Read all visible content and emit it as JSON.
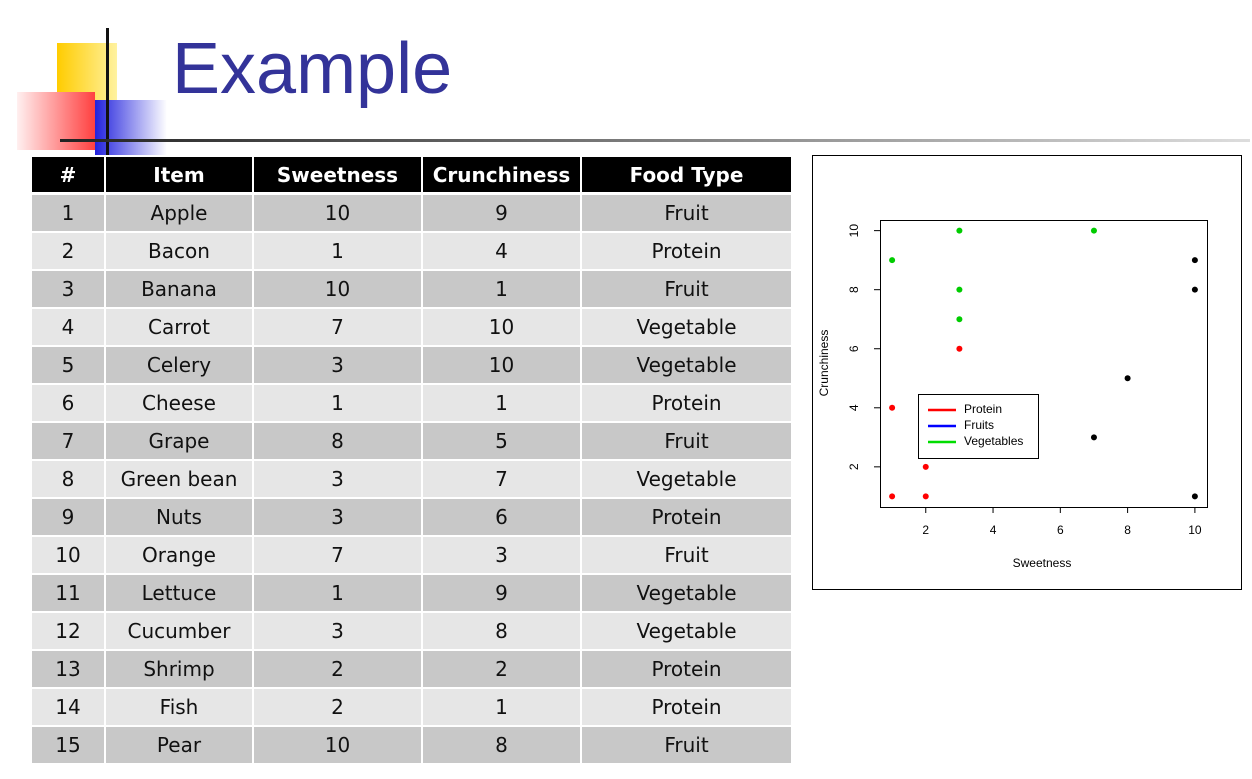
{
  "title": "Example",
  "table": {
    "headers": [
      "#",
      "Item",
      "Sweetness",
      "Crunchiness",
      "Food Type"
    ],
    "rows": [
      [
        1,
        "Apple",
        10,
        9,
        "Fruit"
      ],
      [
        2,
        "Bacon",
        1,
        4,
        "Protein"
      ],
      [
        3,
        "Banana",
        10,
        1,
        "Fruit"
      ],
      [
        4,
        "Carrot",
        7,
        10,
        "Vegetable"
      ],
      [
        5,
        "Celery",
        3,
        10,
        "Vegetable"
      ],
      [
        6,
        "Cheese",
        1,
        1,
        "Protein"
      ],
      [
        7,
        "Grape",
        8,
        5,
        "Fruit"
      ],
      [
        8,
        "Green bean",
        3,
        7,
        "Vegetable"
      ],
      [
        9,
        "Nuts",
        3,
        6,
        "Protein"
      ],
      [
        10,
        "Orange",
        7,
        3,
        "Fruit"
      ],
      [
        11,
        "Lettuce",
        1,
        9,
        "Vegetable"
      ],
      [
        12,
        "Cucumber",
        3,
        8,
        "Vegetable"
      ],
      [
        13,
        "Shrimp",
        2,
        2,
        "Protein"
      ],
      [
        14,
        "Fish",
        2,
        1,
        "Protein"
      ],
      [
        15,
        "Pear",
        10,
        8,
        "Fruit"
      ]
    ]
  },
  "chart_data": {
    "type": "scatter",
    "xlabel": "Sweetness",
    "ylabel": "Crunchiness",
    "series": [
      {
        "name": "Protein",
        "color": "#ff0000",
        "marker_color": "#ff0000",
        "x": [
          1,
          1,
          2,
          2,
          3
        ],
        "values": [
          4,
          1,
          2,
          1,
          6
        ]
      },
      {
        "name": "Fruits",
        "color": "#0000ff",
        "marker_color": "#000000",
        "x": [
          10,
          10,
          8,
          7,
          10
        ],
        "values": [
          9,
          8,
          5,
          3,
          1
        ]
      },
      {
        "name": "Vegetables",
        "color": "#00dd00",
        "marker_color": "#00cc00",
        "x": [
          1,
          3,
          7,
          3,
          3
        ],
        "values": [
          9,
          10,
          10,
          8,
          7
        ]
      }
    ],
    "xlim": [
      0.64,
      10.36
    ],
    "ylim": [
      0.64,
      10.36
    ],
    "xticks": [
      2,
      4,
      6,
      8,
      10
    ],
    "yticks": [
      2,
      4,
      6,
      8,
      10
    ],
    "legend": "left"
  }
}
